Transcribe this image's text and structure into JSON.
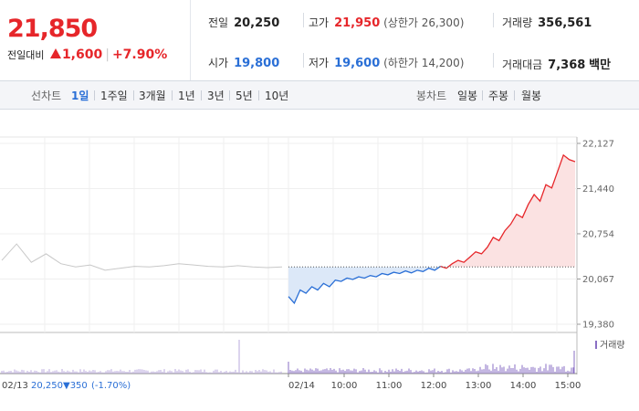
{
  "header": {
    "price": "21,850",
    "change_label": "전일대비",
    "change_amount": "1,600",
    "change_percent": "+7.90%",
    "stats": [
      {
        "label": "전일",
        "value": "20,250",
        "note": ""
      },
      {
        "label": "고가",
        "value": "21,950",
        "note": "(상한가 26,300)"
      },
      {
        "label": "거래량",
        "value": "356,561",
        "note": ""
      },
      {
        "label": "시가",
        "value": "19,800",
        "note": ""
      },
      {
        "label": "저가",
        "value": "19,600",
        "note": "(하한가 14,200)"
      },
      {
        "label": "거래대금",
        "value": "7,368",
        "note": "백만"
      }
    ]
  },
  "line_tabs": {
    "title": "선차트",
    "items": [
      "1일",
      "1주일",
      "3개월",
      "1년",
      "3년",
      "5년",
      "10년"
    ],
    "active": "1일"
  },
  "candle_tabs": {
    "title": "봉차트",
    "items": [
      "일봉",
      "주봉",
      "월봉"
    ]
  },
  "colors": {
    "up": "#e6262a",
    "down": "#2a6fd6",
    "prev": "#c8c8c8"
  },
  "chart_data": {
    "type": "line",
    "previous_close": 20250,
    "y_ticks": [
      19380,
      20067,
      20754,
      21440,
      22127
    ],
    "y_tick_labels": [
      "19,380",
      "20,067",
      "20,754",
      "21,440",
      "22,127"
    ],
    "x_tick_labels": [
      "02/14",
      "10:00",
      "11:00",
      "12:00",
      "13:00",
      "14:00",
      "15:00"
    ],
    "volume_legend": "거래량",
    "prev_day_summary": {
      "date": "02/13",
      "close": "20,250",
      "change": "▼350",
      "percent": "(-1.70%)"
    },
    "prev_day_series": [
      20350,
      20600,
      20320,
      20450,
      20300,
      20250,
      20280,
      20200,
      20230,
      20260,
      20250,
      20270,
      20300,
      20280,
      20260,
      20250,
      20270,
      20250,
      20240,
      20250
    ],
    "today_series": [
      19800,
      19700,
      19900,
      19850,
      19950,
      19900,
      20000,
      19950,
      20050,
      20030,
      20080,
      20060,
      20100,
      20080,
      20120,
      20100,
      20150,
      20130,
      20170,
      20150,
      20190,
      20160,
      20200,
      20180,
      20230,
      20200,
      20260,
      20230,
      20300,
      20350,
      20320,
      20400,
      20480,
      20450,
      20550,
      20700,
      20650,
      20800,
      20900,
      21050,
      21000,
      21200,
      21350,
      21250,
      21500,
      21450,
      21700,
      21950,
      21880,
      21850
    ]
  }
}
